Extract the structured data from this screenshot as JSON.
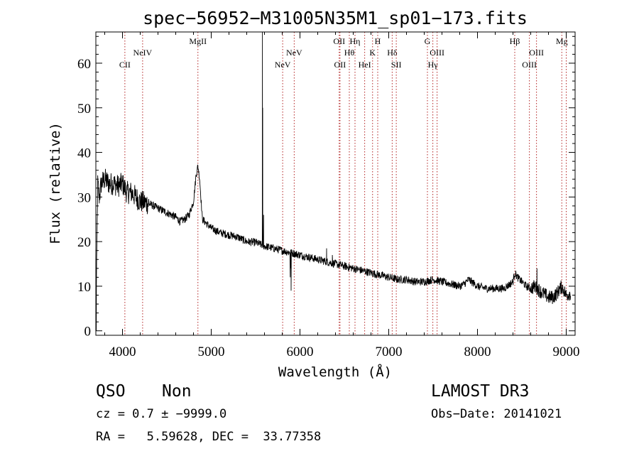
{
  "chart_data": {
    "type": "line",
    "title": "spec−56952−M31005N35M1_sp01−173.fits",
    "xlabel": "Wavelength (Å)",
    "ylabel": "Flux (relative)",
    "xlim": [
      3700,
      9100
    ],
    "ylim": [
      -1,
      67
    ],
    "xticks": [
      4000,
      5000,
      6000,
      7000,
      8000,
      9000
    ],
    "yticks": [
      0,
      10,
      20,
      30,
      40,
      50,
      60
    ],
    "grid": false,
    "series": [
      {
        "name": "flux",
        "anchors": [
          [
            3700,
            2
          ],
          [
            3710,
            15
          ],
          [
            3720,
            33
          ],
          [
            3740,
            30
          ],
          [
            3760,
            33
          ],
          [
            3800,
            34
          ],
          [
            3850,
            33
          ],
          [
            3900,
            33
          ],
          [
            3950,
            32.5
          ],
          [
            4000,
            33
          ],
          [
            4050,
            31
          ],
          [
            4100,
            31
          ],
          [
            4150,
            30
          ],
          [
            4200,
            29
          ],
          [
            4300,
            28.5
          ],
          [
            4400,
            27.5
          ],
          [
            4500,
            26.5
          ],
          [
            4600,
            25.5
          ],
          [
            4650,
            24.5
          ],
          [
            4700,
            25
          ],
          [
            4750,
            26
          ],
          [
            4800,
            29
          ],
          [
            4830,
            35
          ],
          [
            4850,
            37
          ],
          [
            4870,
            34
          ],
          [
            4900,
            25
          ],
          [
            4950,
            24
          ],
          [
            5000,
            23
          ],
          [
            5100,
            22
          ],
          [
            5200,
            21.5
          ],
          [
            5300,
            21
          ],
          [
            5400,
            20
          ],
          [
            5500,
            19.8
          ],
          [
            5600,
            19
          ],
          [
            5700,
            18.5
          ],
          [
            5800,
            18
          ],
          [
            5900,
            17.5
          ],
          [
            6000,
            17
          ],
          [
            6100,
            16.5
          ],
          [
            6200,
            16
          ],
          [
            6300,
            15.5
          ],
          [
            6400,
            15
          ],
          [
            6500,
            14.5
          ],
          [
            6600,
            14
          ],
          [
            6700,
            13.5
          ],
          [
            6800,
            13
          ],
          [
            6900,
            12.5
          ],
          [
            7000,
            12
          ],
          [
            7100,
            11.5
          ],
          [
            7200,
            11.5
          ],
          [
            7300,
            11
          ],
          [
            7400,
            11
          ],
          [
            7500,
            11.5
          ],
          [
            7600,
            11
          ],
          [
            7700,
            10.5
          ],
          [
            7800,
            10
          ],
          [
            7850,
            10.5
          ],
          [
            7900,
            11.5
          ],
          [
            8000,
            10
          ],
          [
            8100,
            9.5
          ],
          [
            8200,
            9.5
          ],
          [
            8300,
            9.5
          ],
          [
            8400,
            11
          ],
          [
            8420,
            13
          ],
          [
            8450,
            12
          ],
          [
            8500,
            11
          ],
          [
            8550,
            10
          ],
          [
            8600,
            9.5
          ],
          [
            8650,
            10
          ],
          [
            8700,
            9
          ],
          [
            8800,
            7.5
          ],
          [
            8850,
            7.5
          ],
          [
            8900,
            8.5
          ],
          [
            8950,
            10
          ],
          [
            9000,
            8
          ],
          [
            9050,
            8.5
          ]
        ],
        "spikes": [
          [
            5577,
            67
          ],
          [
            5580,
            50
          ],
          [
            5590,
            26
          ],
          [
            5890,
            12
          ],
          [
            5895,
            14
          ],
          [
            5900,
            9
          ],
          [
            6300,
            18.5
          ],
          [
            6365,
            17
          ],
          [
            8670,
            14
          ],
          [
            8920,
            10
          ],
          [
            3705,
            0
          ]
        ]
      }
    ],
    "line_markers": [
      {
        "wavelength": 4027,
        "label": "CII",
        "row": 3
      },
      {
        "wavelength": 4227,
        "label": "NeIV",
        "row": 2
      },
      {
        "wavelength": 4850,
        "label": "MgII",
        "row": 1
      },
      {
        "wavelength": 5805,
        "label": "NeV",
        "row": 3
      },
      {
        "wavelength": 5935,
        "label": "NeV",
        "row": 2
      },
      {
        "wavelength": 6442,
        "label": "OII",
        "row": 1
      },
      {
        "wavelength": 6451,
        "label": "OII",
        "row": 3
      },
      {
        "wavelength": 6556,
        "label": "Hθ",
        "row": 2
      },
      {
        "wavelength": 6620,
        "label": "Hη",
        "row": 1
      },
      {
        "wavelength": 6729,
        "label": "HeI",
        "row": 3
      },
      {
        "wavelength": 6818,
        "label": "K",
        "row": 2
      },
      {
        "wavelength": 6876,
        "label": "H",
        "row": 1
      },
      {
        "wavelength": 7039,
        "label": "Hδ",
        "row": 2
      },
      {
        "wavelength": 7085,
        "label": "SII",
        "row": 3
      },
      {
        "wavelength": 7436,
        "label": "G",
        "row": 1
      },
      {
        "wavelength": 7497,
        "label": "Hγ",
        "row": 3
      },
      {
        "wavelength": 7545,
        "label": "OIII",
        "row": 2
      },
      {
        "wavelength": 8420,
        "label": "Hβ",
        "row": 1
      },
      {
        "wavelength": 8585,
        "label": "OIII",
        "row": 3
      },
      {
        "wavelength": 8665,
        "label": "OIII",
        "row": 2
      },
      {
        "wavelength": 8950,
        "label": "Mg",
        "row": 1
      },
      {
        "wavelength": 9000,
        "label": "",
        "row": 0
      }
    ],
    "colors": {
      "spectrum": "#000000",
      "marker": "#b22222",
      "axis": "#000000"
    }
  },
  "info": {
    "class": "QSO",
    "subclass": "Non",
    "survey": "LAMOST DR3",
    "cz": "cz = 0.7 ± −9999.0",
    "obs_date": "Obs−Date: 20141021",
    "radec": "RA =   5.59628, DEC =  33.77358"
  }
}
